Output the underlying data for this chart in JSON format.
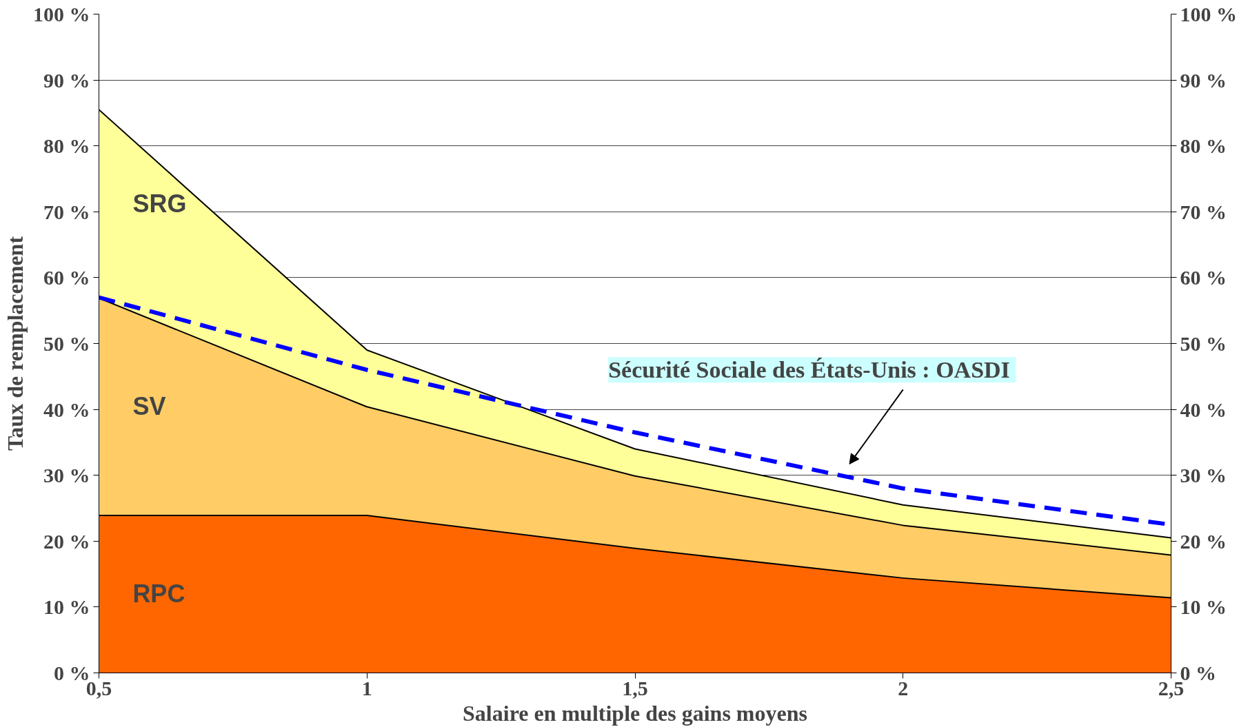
{
  "chart_data": {
    "type": "area",
    "stacked": true,
    "xlabel": "Salaire en multiple des gains moyens",
    "ylabel": "Taux de remplacement",
    "x": [
      0.5,
      1,
      1.5,
      2,
      2.5
    ],
    "series": [
      {
        "name": "RPC",
        "color": "#ff6600",
        "values": [
          24,
          24,
          19,
          14.5,
          11.5
        ]
      },
      {
        "name": "SV",
        "color": "#ffcc66",
        "values": [
          33,
          16.5,
          11,
          8,
          6.5
        ]
      },
      {
        "name": "SRG",
        "color": "#ffff99",
        "values": [
          28.5,
          8.5,
          4,
          3,
          2.5
        ]
      },
      {
        "name": "Sécurité Sociale des États-Unis :  OASDI",
        "type": "line",
        "color": "#0000ff",
        "line_style": "dashed",
        "values": [
          57,
          46,
          36.5,
          28,
          22.5
        ]
      }
    ],
    "xlim": [
      0.5,
      2.5
    ],
    "xticks": [
      {
        "value": 0.5,
        "label": "0,5"
      },
      1,
      {
        "value": 1.5,
        "label": "1,5"
      },
      2,
      {
        "value": 2.5,
        "label": "2,5"
      }
    ],
    "ylim": [
      0,
      100
    ],
    "yticks": [
      {
        "value": 0,
        "label": "0 %"
      },
      {
        "value": 10,
        "label": "10 %"
      },
      {
        "value": 20,
        "label": "20 %"
      },
      {
        "value": 30,
        "label": "30 %"
      },
      {
        "value": 40,
        "label": "40 %"
      },
      {
        "value": 50,
        "label": "50 %"
      },
      {
        "value": 60,
        "label": "60 %"
      },
      {
        "value": 70,
        "label": "70 %"
      },
      {
        "value": 80,
        "label": "80 %"
      },
      {
        "value": 90,
        "label": "90 %"
      },
      {
        "value": 100,
        "label": "100 %"
      }
    ],
    "y2lim": [
      0,
      100
    ],
    "y2ticks": [
      {
        "value": 0,
        "label": "0 %"
      },
      {
        "value": 10,
        "label": "10 %"
      },
      {
        "value": 20,
        "label": "20 %"
      },
      {
        "value": 30,
        "label": "30 %"
      },
      {
        "value": 40,
        "label": "40 %"
      },
      {
        "value": 50,
        "label": "50 %"
      },
      {
        "value": 60,
        "label": "60 %"
      },
      {
        "value": 70,
        "label": "70 %"
      },
      {
        "value": 80,
        "label": "80 %"
      },
      {
        "value": 90,
        "label": "90 %"
      },
      {
        "value": 100,
        "label": "100 %"
      }
    ],
    "grid": "y"
  }
}
